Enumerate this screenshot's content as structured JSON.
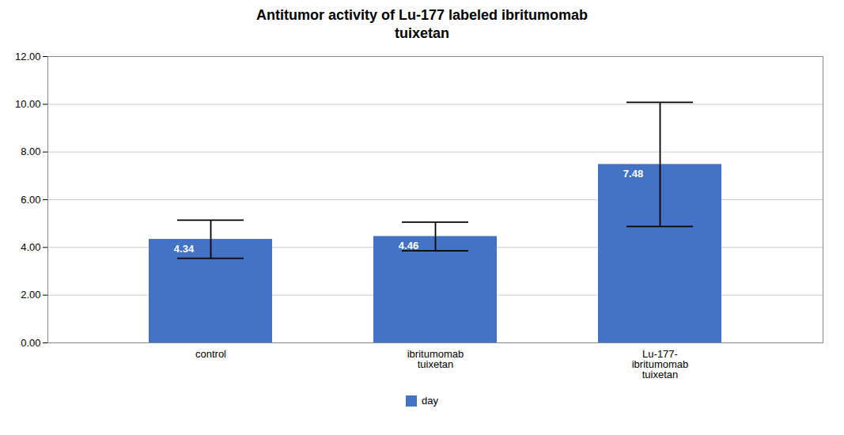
{
  "chart_data": {
    "type": "bar",
    "title": "Antitumor activity of Lu-177 labeled ibritumomab\ntuixetan",
    "categories": [
      "control",
      "ibritumomab\ntuixetan",
      "Lu-177-\nibritumomab\ntuixetan"
    ],
    "series": [
      {
        "name": "day",
        "color": "#4472C4",
        "values": [
          4.34,
          4.46,
          7.48
        ],
        "errors": [
          0.8,
          0.6,
          2.6
        ]
      }
    ],
    "ylim": [
      0,
      12
    ],
    "yticks": [
      {
        "value": 0.0,
        "label": "0.00"
      },
      {
        "value": 2.0,
        "label": "2.00"
      },
      {
        "value": 4.0,
        "label": "4.00"
      },
      {
        "value": 6.0,
        "label": "6.00"
      },
      {
        "value": 8.0,
        "label": "8.00"
      },
      {
        "value": 10.0,
        "label": "10.00"
      },
      {
        "value": 12.0,
        "label": "12.00"
      }
    ],
    "grid": true,
    "data_labels": true
  }
}
